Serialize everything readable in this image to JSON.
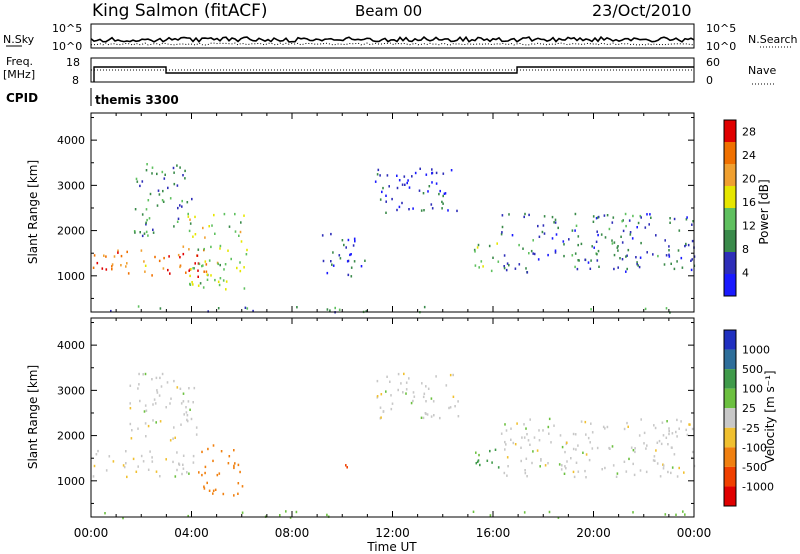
{
  "header": {
    "station": "King Salmon (fitACF)",
    "beam": "Beam 00",
    "date": "23/Oct/2010"
  },
  "noise_panel": {
    "left_label": "N.Sky",
    "right_label": "N.Search",
    "ticks_left": [
      "10^5",
      "10^0"
    ],
    "ticks_right": [
      "10^5",
      "10^0"
    ]
  },
  "freq_panel": {
    "left_label_1": "Freq.",
    "left_label_2": "[MHz]",
    "ticks_left": [
      "18",
      "8"
    ],
    "right_label": "Nave",
    "ticks_right": [
      "60",
      "0"
    ]
  },
  "cpid": {
    "label": "CPID",
    "program": "themis 3300"
  },
  "colors": {
    "power": [
      "#1a1aff",
      "#2e2eb8",
      "#3a8a4a",
      "#5fc05f",
      "#e6e600",
      "#f0a030",
      "#f07000",
      "#e00000"
    ],
    "velocity": [
      "#2030c0",
      "#2e6e9a",
      "#3f9a4a",
      "#6cc040",
      "#c8c8c8",
      "#f0c030",
      "#f08010",
      "#f04000",
      "#e00000"
    ]
  },
  "chart_data": [
    {
      "type": "heatmap",
      "title": "",
      "xlabel": "",
      "ylabel": "Slant Range [km]",
      "xlim": [
        "00:00",
        "00:00"
      ],
      "ylim": [
        200,
        4600
      ],
      "yticks": [
        "1000",
        "2000",
        "3000",
        "4000"
      ],
      "colorbar_label": "Power [dB]",
      "colorbar_ticks": [
        "4",
        "8",
        "12",
        "16",
        "20",
        "24",
        "28"
      ],
      "colorbar_range": [
        0,
        30
      ],
      "blobs": [
        {
          "t0": 0.0,
          "t1": 3.0,
          "r0": 1000,
          "r1": 1600,
          "value": 24
        },
        {
          "t0": 3.0,
          "t1": 4.6,
          "r0": 1000,
          "r1": 1700,
          "value": 28
        },
        {
          "t0": 3.8,
          "t1": 6.2,
          "r0": 700,
          "r1": 2400,
          "value": 16
        },
        {
          "t0": 1.6,
          "t1": 4.0,
          "r0": 1900,
          "r1": 3500,
          "value": 10
        },
        {
          "t0": 9.0,
          "t1": 11.0,
          "r0": 1000,
          "r1": 2000,
          "value": 6
        },
        {
          "t0": 11.3,
          "t1": 14.6,
          "r0": 2400,
          "r1": 3400,
          "value": 6
        },
        {
          "t0": 15.2,
          "t1": 16.2,
          "r0": 1100,
          "r1": 1800,
          "value": 14
        },
        {
          "t0": 16.3,
          "t1": 24.0,
          "r0": 1100,
          "r1": 2400,
          "value": 8
        },
        {
          "t0": 0.0,
          "t1": 24.0,
          "r0": 200,
          "r1": 350,
          "value": 10
        }
      ]
    },
    {
      "type": "heatmap",
      "title": "",
      "xlabel": "Time UT",
      "ylabel": "Slant Range [km]",
      "xticks": [
        "00:00",
        "04:00",
        "08:00",
        "12:00",
        "16:00",
        "20:00",
        "00:00"
      ],
      "xlim": [
        "00:00",
        "00:00"
      ],
      "ylim": [
        200,
        4600
      ],
      "yticks": [
        "1000",
        "2000",
        "3000",
        "4000"
      ],
      "colorbar_label": "Velocity [m s⁻¹]",
      "colorbar_ticks": [
        "1000",
        "500",
        "100",
        "25",
        "-25",
        "-100",
        "-500",
        "-1000"
      ],
      "blobs": [
        {
          "t0": 0.0,
          "t1": 4.2,
          "r0": 1100,
          "r1": 1700,
          "value": 0
        },
        {
          "t0": 1.5,
          "t1": 4.2,
          "r0": 1900,
          "r1": 3400,
          "value": 0
        },
        {
          "t0": 4.2,
          "t1": 6.0,
          "r0": 700,
          "r1": 1900,
          "value": -300
        },
        {
          "t0": 10.1,
          "t1": 10.6,
          "r0": 1200,
          "r1": 1500,
          "value": -600
        },
        {
          "t0": 11.3,
          "t1": 14.6,
          "r0": 2400,
          "r1": 3400,
          "value": 0
        },
        {
          "t0": 15.2,
          "t1": 16.2,
          "r0": 1100,
          "r1": 1800,
          "value": 120
        },
        {
          "t0": 16.3,
          "t1": 24.0,
          "r0": 1100,
          "r1": 2400,
          "value": 0
        },
        {
          "t0": 0.0,
          "t1": 24.0,
          "r0": 200,
          "r1": 350,
          "value": 60
        }
      ]
    }
  ]
}
